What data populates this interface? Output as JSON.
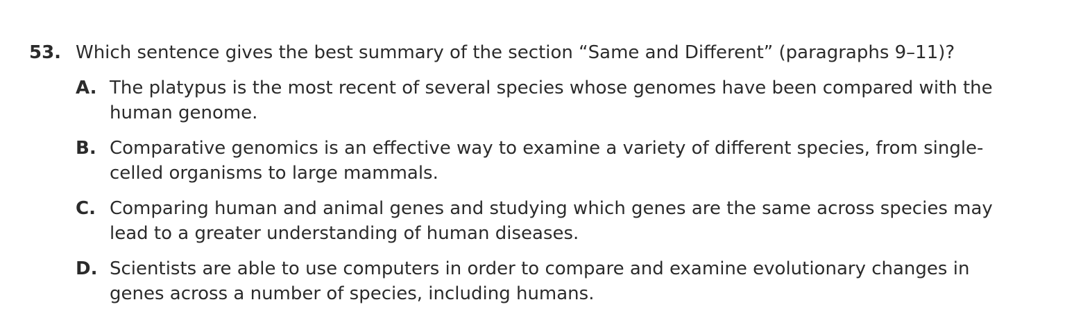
{
  "question": {
    "number": "53.",
    "stem": "Which sentence gives the best summary of the section “Same and Different” (paragraphs 9–11)?",
    "choices": [
      {
        "letter": "A.",
        "text": "The platypus is the most recent of several species whose genomes have been compared with the human genome."
      },
      {
        "letter": "B.",
        "text": "Comparative genomics is an effective way to examine a variety of different species, from single-celled organisms to large mammals."
      },
      {
        "letter": "C.",
        "text": "Comparing human and animal genes and studying which genes are the same across species may lead to a greater understanding of human diseases."
      },
      {
        "letter": "D.",
        "text": "Scientists are able to use computers in order to compare and examine evolutionary changes in genes across a number of species, including humans."
      }
    ]
  }
}
